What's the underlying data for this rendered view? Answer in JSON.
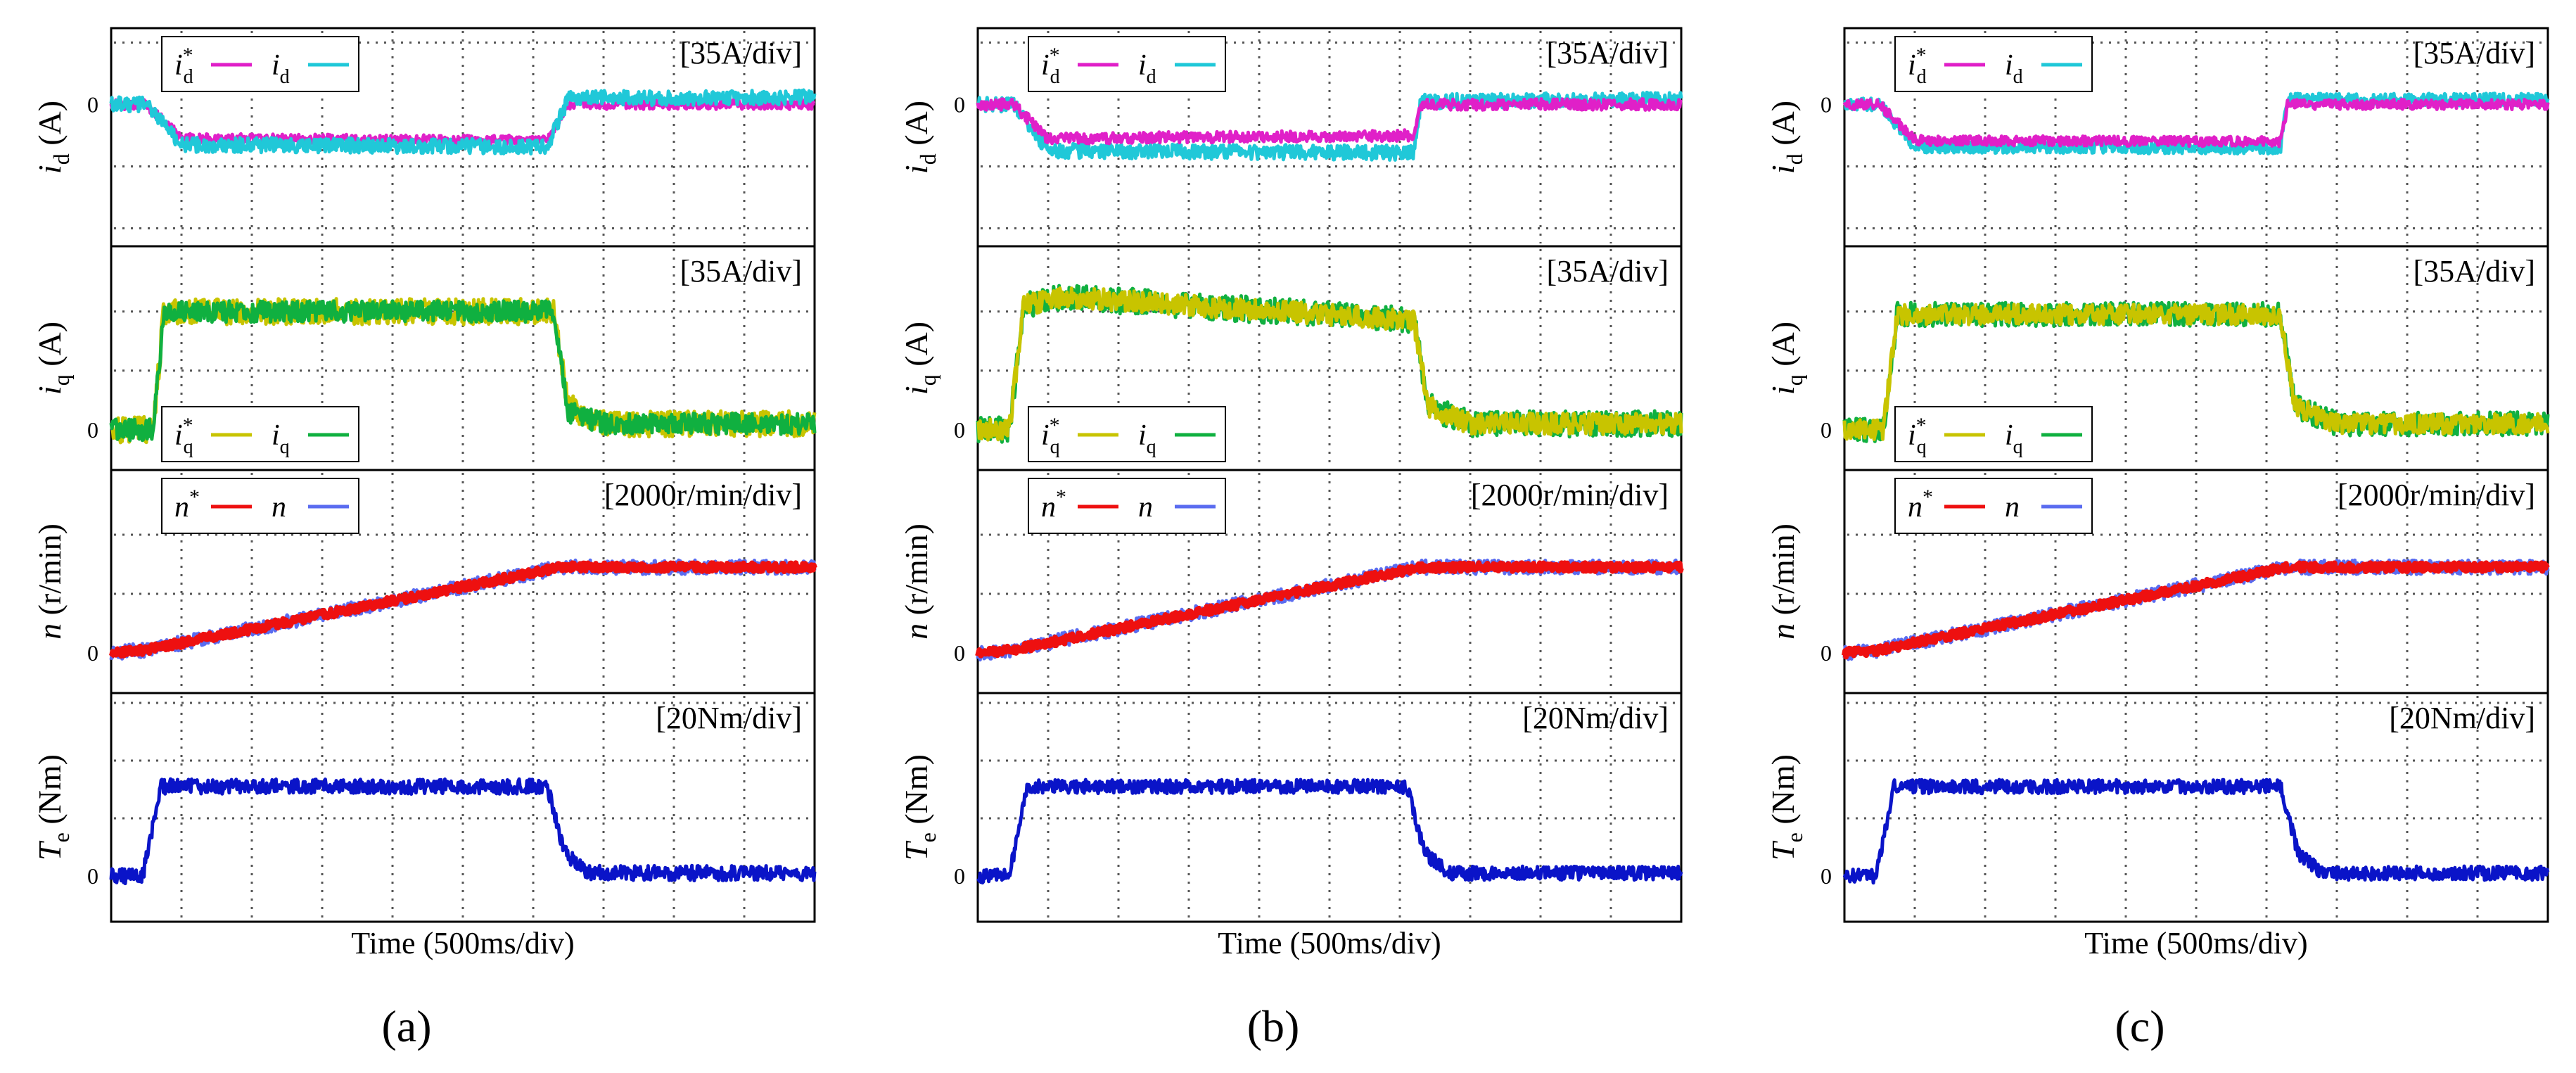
{
  "chart_data": [
    {
      "type": "line",
      "panel_label": "(a)",
      "xlabel": "Time (500ms/div)",
      "subplots": [
        {
          "id": "id",
          "ylabel_var": "i",
          "ylabel_sub": "d",
          "ylabel_unit": " (A)",
          "scale": "[35A/div]",
          "zero_label": "0",
          "y_units_per_div": 35,
          "x_units_per_div": 500,
          "series": [
            {
              "name": "i*d",
              "sym": "i",
              "sub": "d",
              "star": true,
              "color": "#e020c8",
              "shape": [
                [
                  0.0,
                  0.0
                ],
                [
                  0.5,
                  0.0
                ],
                [
                  1.0,
                  -0.55
                ],
                [
                  6.2,
                  -0.58
                ],
                [
                  6.5,
                  0.0
                ],
                [
                  10.0,
                  0.0
                ]
              ],
              "noise": 0.08
            },
            {
              "name": "id",
              "sym": "i",
              "sub": "d",
              "star": false,
              "color": "#20c8d8",
              "shape": [
                [
                  0.0,
                  0.0
                ],
                [
                  0.5,
                  0.0
                ],
                [
                  1.0,
                  -0.65
                ],
                [
                  6.2,
                  -0.68
                ],
                [
                  6.5,
                  0.1
                ],
                [
                  10.0,
                  0.12
                ]
              ],
              "noise": 0.12
            }
          ]
        },
        {
          "id": "iq",
          "ylabel_var": "i",
          "ylabel_sub": "q",
          "ylabel_unit": " (A)",
          "scale": "[35A/div]",
          "zero_label": "0",
          "y_units_per_div": 35,
          "x_units_per_div": 500,
          "series": [
            {
              "name": "i*q",
              "sym": "i",
              "sub": "q",
              "star": true,
              "color": "#c8c400",
              "shape": [
                [
                  0.0,
                  0.0
                ],
                [
                  0.6,
                  0.0
                ],
                [
                  0.75,
                  2.0
                ],
                [
                  6.3,
                  2.0
                ],
                [
                  6.5,
                  0.4
                ],
                [
                  7.0,
                  0.1
                ],
                [
                  10.0,
                  0.1
                ]
              ],
              "noise": 0.22
            },
            {
              "name": "iq",
              "sym": "i",
              "sub": "q",
              "star": false,
              "color": "#10b040",
              "shape": [
                [
                  0.0,
                  0.0
                ],
                [
                  0.6,
                  0.0
                ],
                [
                  0.75,
                  2.0
                ],
                [
                  6.3,
                  2.0
                ],
                [
                  6.5,
                  0.3
                ],
                [
                  7.0,
                  0.1
                ],
                [
                  10.0,
                  0.1
                ]
              ],
              "noise": 0.18
            }
          ]
        },
        {
          "id": "n",
          "ylabel_var": "n",
          "ylabel_sub": "",
          "ylabel_unit": " (r/min)",
          "scale": "[2000r/min/div]",
          "zero_label": "0",
          "y_units_per_div": 2000,
          "x_units_per_div": 500,
          "series": [
            {
              "name": "n",
              "sym": "n",
              "sub": "",
              "star": false,
              "color": "#5a6cf0",
              "shape": [
                [
                  0.0,
                  0.0
                ],
                [
                  0.5,
                  0.05
                ],
                [
                  6.4,
                  1.45
                ],
                [
                  10.0,
                  1.45
                ]
              ],
              "noise": 0.12
            },
            {
              "name": "n*",
              "sym": "n",
              "sub": "",
              "star": true,
              "color": "#ee1010",
              "shape": [
                [
                  0.0,
                  0.0
                ],
                [
                  0.5,
                  0.05
                ],
                [
                  6.4,
                  1.45
                ],
                [
                  10.0,
                  1.45
                ]
              ],
              "noise": 0.07
            }
          ]
        },
        {
          "id": "Te",
          "ylabel_var": "T",
          "ylabel_sub": "e",
          "ylabel_unit": " (Nm)",
          "scale": "[20Nm/div]",
          "zero_label": "0",
          "y_units_per_div": 20,
          "x_units_per_div": 500,
          "series": [
            {
              "name": "Te",
              "sym": "T",
              "sub": "e",
              "star": false,
              "color": "#0a14c8",
              "shape": [
                [
                  0.0,
                  0.0
                ],
                [
                  0.45,
                  0.0
                ],
                [
                  0.7,
                  1.55
                ],
                [
                  6.2,
                  1.55
                ],
                [
                  6.45,
                  0.4
                ],
                [
                  6.8,
                  0.05
                ],
                [
                  10.0,
                  0.05
                ]
              ],
              "noise": 0.13
            }
          ]
        }
      ]
    },
    {
      "type": "line",
      "panel_label": "(b)",
      "xlabel": "Time (500ms/div)",
      "subplots": [
        {
          "id": "id",
          "ylabel_var": "i",
          "ylabel_sub": "d",
          "ylabel_unit": " (A)",
          "scale": "[35A/div]",
          "zero_label": "0",
          "y_units_per_div": 35,
          "x_units_per_div": 500,
          "series": [
            {
              "name": "id",
              "sym": "i",
              "sub": "d",
              "star": false,
              "color": "#20c8d8",
              "shape": [
                [
                  0.0,
                  0.0
                ],
                [
                  0.5,
                  0.0
                ],
                [
                  1.0,
                  -0.75
                ],
                [
                  6.2,
                  -0.78
                ],
                [
                  6.3,
                  0.05
                ],
                [
                  10.0,
                  0.08
                ]
              ],
              "noise": 0.12
            },
            {
              "name": "i*d",
              "sym": "i",
              "sub": "d",
              "star": true,
              "color": "#e020c8",
              "shape": [
                [
                  0.0,
                  0.0
                ],
                [
                  0.5,
                  0.0
                ],
                [
                  1.0,
                  -0.55
                ],
                [
                  6.2,
                  -0.5
                ],
                [
                  6.3,
                  0.0
                ],
                [
                  10.0,
                  0.0
                ]
              ],
              "noise": 0.09
            }
          ]
        },
        {
          "id": "iq",
          "ylabel_var": "i",
          "ylabel_sub": "q",
          "ylabel_unit": " (A)",
          "scale": "[35A/div]",
          "zero_label": "0",
          "y_units_per_div": 35,
          "x_units_per_div": 500,
          "series": [
            {
              "name": "iq",
              "sym": "i",
              "sub": "q",
              "star": false,
              "color": "#10b040",
              "shape": [
                [
                  0.0,
                  0.0
                ],
                [
                  0.45,
                  0.0
                ],
                [
                  0.65,
                  2.1
                ],
                [
                  1.2,
                  2.25
                ],
                [
                  6.2,
                  1.85
                ],
                [
                  6.4,
                  0.4
                ],
                [
                  7.0,
                  0.1
                ],
                [
                  10.0,
                  0.1
                ]
              ],
              "noise": 0.22
            },
            {
              "name": "i*q",
              "sym": "i",
              "sub": "q",
              "star": true,
              "color": "#c8c400",
              "shape": [
                [
                  0.0,
                  0.0
                ],
                [
                  0.45,
                  0.0
                ],
                [
                  0.65,
                  2.1
                ],
                [
                  1.2,
                  2.25
                ],
                [
                  6.2,
                  1.85
                ],
                [
                  6.4,
                  0.4
                ],
                [
                  7.0,
                  0.1
                ],
                [
                  10.0,
                  0.1
                ]
              ],
              "noise": 0.18
            }
          ]
        },
        {
          "id": "n",
          "ylabel_var": "n",
          "ylabel_sub": "",
          "ylabel_unit": " (r/min)",
          "scale": "[2000r/min/div]",
          "zero_label": "0",
          "y_units_per_div": 2000,
          "x_units_per_div": 500,
          "series": [
            {
              "name": "n",
              "sym": "n",
              "sub": "",
              "star": false,
              "color": "#5a6cf0",
              "shape": [
                [
                  0.0,
                  0.0
                ],
                [
                  0.5,
                  0.05
                ],
                [
                  6.3,
                  1.45
                ],
                [
                  10.0,
                  1.45
                ]
              ],
              "noise": 0.12
            },
            {
              "name": "n*",
              "sym": "n",
              "sub": "",
              "star": true,
              "color": "#ee1010",
              "shape": [
                [
                  0.0,
                  0.0
                ],
                [
                  0.5,
                  0.05
                ],
                [
                  6.3,
                  1.45
                ],
                [
                  10.0,
                  1.45
                ]
              ],
              "noise": 0.07
            }
          ]
        },
        {
          "id": "Te",
          "ylabel_var": "T",
          "ylabel_sub": "e",
          "ylabel_unit": " (Nm)",
          "scale": "[20Nm/div]",
          "zero_label": "0",
          "y_units_per_div": 20,
          "x_units_per_div": 500,
          "series": [
            {
              "name": "Te",
              "sym": "T",
              "sub": "e",
              "star": false,
              "color": "#0a14c8",
              "shape": [
                [
                  0.0,
                  0.0
                ],
                [
                  0.45,
                  0.0
                ],
                [
                  0.7,
                  1.55
                ],
                [
                  6.1,
                  1.55
                ],
                [
                  6.35,
                  0.4
                ],
                [
                  6.7,
                  0.05
                ],
                [
                  10.0,
                  0.05
                ]
              ],
              "noise": 0.12
            }
          ]
        }
      ]
    },
    {
      "type": "line",
      "panel_label": "(c)",
      "xlabel": "Time (500ms/div)",
      "subplots": [
        {
          "id": "id",
          "ylabel_var": "i",
          "ylabel_sub": "d",
          "ylabel_unit": " (A)",
          "scale": "[35A/div]",
          "zero_label": "0",
          "y_units_per_div": 35,
          "x_units_per_div": 500,
          "series": [
            {
              "name": "id",
              "sym": "i",
              "sub": "d",
              "star": false,
              "color": "#20c8d8",
              "shape": [
                [
                  0.0,
                  0.0
                ],
                [
                  0.5,
                  0.0
                ],
                [
                  1.0,
                  -0.68
                ],
                [
                  6.2,
                  -0.7
                ],
                [
                  6.3,
                  0.08
                ],
                [
                  10.0,
                  0.08
                ]
              ],
              "noise": 0.1
            },
            {
              "name": "i*d",
              "sym": "i",
              "sub": "d",
              "star": true,
              "color": "#e020c8",
              "shape": [
                [
                  0.0,
                  0.0
                ],
                [
                  0.5,
                  0.0
                ],
                [
                  1.0,
                  -0.58
                ],
                [
                  6.2,
                  -0.6
                ],
                [
                  6.3,
                  0.0
                ],
                [
                  10.0,
                  0.0
                ]
              ],
              "noise": 0.08
            }
          ]
        },
        {
          "id": "iq",
          "ylabel_var": "i",
          "ylabel_sub": "q",
          "ylabel_unit": " (A)",
          "scale": "[35A/div]",
          "zero_label": "0",
          "y_units_per_div": 35,
          "x_units_per_div": 500,
          "series": [
            {
              "name": "iq",
              "sym": "i",
              "sub": "q",
              "star": false,
              "color": "#10b040",
              "shape": [
                [
                  0.0,
                  0.0
                ],
                [
                  0.55,
                  0.0
                ],
                [
                  0.75,
                  1.95
                ],
                [
                  6.2,
                  1.95
                ],
                [
                  6.4,
                  0.4
                ],
                [
                  7.0,
                  0.1
                ],
                [
                  10.0,
                  0.1
                ]
              ],
              "noise": 0.2
            },
            {
              "name": "i*q",
              "sym": "i",
              "sub": "q",
              "star": true,
              "color": "#c8c400",
              "shape": [
                [
                  0.0,
                  0.0
                ],
                [
                  0.55,
                  0.0
                ],
                [
                  0.75,
                  1.95
                ],
                [
                  6.2,
                  1.95
                ],
                [
                  6.4,
                  0.4
                ],
                [
                  7.0,
                  0.1
                ],
                [
                  10.0,
                  0.1
                ]
              ],
              "noise": 0.17
            }
          ]
        },
        {
          "id": "n",
          "ylabel_var": "n",
          "ylabel_sub": "",
          "ylabel_unit": " (r/min)",
          "scale": "[2000r/min/div]",
          "zero_label": "0",
          "y_units_per_div": 2000,
          "x_units_per_div": 500,
          "series": [
            {
              "name": "n",
              "sym": "n",
              "sub": "",
              "star": false,
              "color": "#5a6cf0",
              "shape": [
                [
                  0.0,
                  0.0
                ],
                [
                  0.5,
                  0.05
                ],
                [
                  6.3,
                  1.45
                ],
                [
                  10.0,
                  1.45
                ]
              ],
              "noise": 0.12
            },
            {
              "name": "n*",
              "sym": "n",
              "sub": "",
              "star": true,
              "color": "#ee1010",
              "shape": [
                [
                  0.0,
                  0.0
                ],
                [
                  0.5,
                  0.05
                ],
                [
                  6.3,
                  1.45
                ],
                [
                  10.0,
                  1.45
                ]
              ],
              "noise": 0.07
            }
          ]
        },
        {
          "id": "Te",
          "ylabel_var": "T",
          "ylabel_sub": "e",
          "ylabel_unit": " (Nm)",
          "scale": "[20Nm/div]",
          "zero_label": "0",
          "y_units_per_div": 20,
          "x_units_per_div": 500,
          "series": [
            {
              "name": "Te",
              "sym": "T",
              "sub": "e",
              "star": false,
              "color": "#0a14c8",
              "shape": [
                [
                  0.0,
                  0.0
                ],
                [
                  0.45,
                  0.0
                ],
                [
                  0.7,
                  1.55
                ],
                [
                  6.2,
                  1.55
                ],
                [
                  6.45,
                  0.4
                ],
                [
                  6.8,
                  0.05
                ],
                [
                  10.0,
                  0.05
                ]
              ],
              "noise": 0.12
            }
          ]
        }
      ]
    }
  ]
}
